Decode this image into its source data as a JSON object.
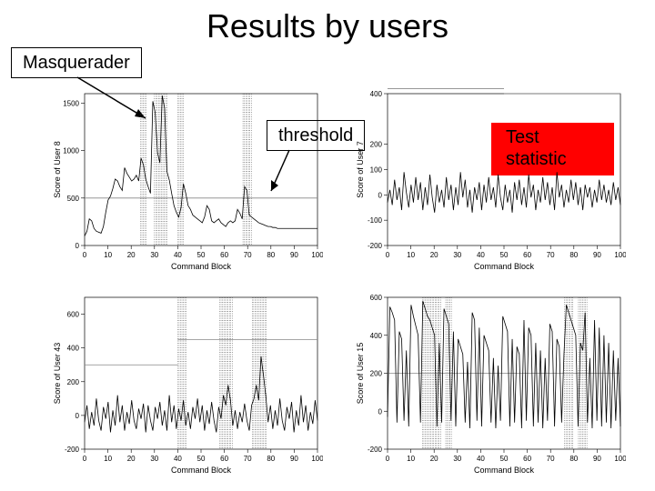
{
  "title": "Results by users",
  "labels": {
    "masquerader": "Masquerader",
    "threshold": "threshold",
    "test_statistic": "Test\nstatistic"
  },
  "x_axis_label": "Command Block",
  "panels": [
    {
      "ylabel": "Score of User 8",
      "xlim": [
        0,
        100
      ],
      "xticks": [
        0,
        10,
        20,
        30,
        40,
        50,
        60,
        70,
        80,
        90,
        100
      ],
      "ylim": [
        0,
        1600
      ],
      "yticks": [
        0,
        500,
        1000,
        1500
      ],
      "threshold_segments": [
        [
          0,
          100,
          500
        ]
      ],
      "masquerader_bands": [
        [
          24,
          27
        ],
        [
          30,
          36
        ],
        [
          40,
          43
        ],
        [
          68,
          72
        ]
      ],
      "series": [
        100,
        150,
        280,
        260,
        180,
        150,
        140,
        130,
        200,
        350,
        480,
        520,
        600,
        700,
        680,
        620,
        580,
        820,
        760,
        720,
        680,
        700,
        740,
        680,
        920,
        850,
        700,
        620,
        550,
        1520,
        1400,
        980,
        870,
        1580,
        1450,
        780,
        690,
        550,
        420,
        350,
        300,
        400,
        650,
        550,
        420,
        380,
        320,
        300,
        280,
        260,
        240,
        300,
        420,
        380,
        260,
        240,
        260,
        280,
        240,
        220,
        200,
        240,
        260,
        240,
        260,
        380,
        340,
        280,
        620,
        580,
        320,
        300,
        280,
        260,
        240,
        230,
        220,
        210,
        200,
        200,
        190,
        190,
        180,
        180,
        180,
        180,
        180,
        180,
        180,
        180,
        180,
        180,
        180,
        180,
        180,
        180,
        180,
        180,
        180,
        180
      ]
    },
    {
      "ylabel": "Score of User 7",
      "xlim": [
        0,
        100
      ],
      "xticks": [
        0,
        10,
        20,
        30,
        40,
        50,
        60,
        70,
        80,
        90,
        100
      ],
      "ylim": [
        -200,
        400
      ],
      "yticks": [
        -200,
        -100,
        0,
        100,
        200,
        400
      ],
      "threshold_segments": [
        [
          0,
          50,
          420
        ],
        [
          50,
          100,
          400
        ]
      ],
      "masquerader_bands": [],
      "series": [
        -30,
        20,
        -40,
        60,
        -20,
        30,
        -60,
        90,
        10,
        -50,
        40,
        -30,
        70,
        -20,
        50,
        -60,
        30,
        -40,
        80,
        -10,
        -70,
        40,
        -30,
        20,
        -50,
        70,
        -20,
        40,
        -60,
        30,
        -40,
        90,
        -10,
        60,
        -50,
        20,
        -70,
        30,
        -20,
        50,
        -60,
        40,
        -30,
        70,
        -20,
        30,
        -50,
        80,
        -10,
        -60,
        40,
        -30,
        20,
        -70,
        50,
        -20,
        60,
        -40,
        30,
        -50,
        80,
        -10,
        40,
        -60,
        20,
        -30,
        70,
        -20,
        50,
        -40,
        30,
        -60,
        90,
        -10,
        40,
        -50,
        20,
        -30,
        60,
        -20,
        50,
        -40,
        30,
        -60,
        40,
        -10,
        30,
        -50,
        20,
        -30,
        60,
        -20,
        40,
        -30,
        20,
        -40,
        50,
        -20,
        30,
        -40
      ]
    },
    {
      "ylabel": "Score of User 43",
      "xlim": [
        0,
        100
      ],
      "xticks": [
        0,
        10,
        20,
        30,
        40,
        50,
        60,
        70,
        80,
        90,
        100
      ],
      "ylim": [
        -200,
        700
      ],
      "yticks": [
        -200,
        0,
        200,
        400,
        600
      ],
      "threshold_segments": [
        [
          0,
          40,
          300
        ],
        [
          40,
          100,
          450
        ]
      ],
      "masquerader_bands": [
        [
          40,
          44
        ],
        [
          58,
          64
        ],
        [
          72,
          78
        ]
      ],
      "series": [
        -40,
        60,
        -80,
        20,
        -60,
        100,
        -30,
        -90,
        50,
        -20,
        80,
        -100,
        30,
        -60,
        120,
        -40,
        60,
        -90,
        20,
        -50,
        90,
        -30,
        -80,
        40,
        -20,
        70,
        -100,
        60,
        -30,
        -90,
        50,
        -20,
        80,
        -60,
        30,
        -90,
        120,
        -40,
        60,
        -80,
        40,
        -30,
        90,
        -60,
        20,
        -80,
        50,
        -20,
        100,
        -40,
        60,
        -90,
        30,
        -50,
        80,
        -30,
        -100,
        50,
        -20,
        120,
        60,
        180,
        90,
        -60,
        30,
        -80,
        20,
        -40,
        70,
        -30,
        -90,
        60,
        100,
        180,
        90,
        350,
        240,
        120,
        -40,
        60,
        -80,
        30,
        -60,
        100,
        -30,
        -90,
        50,
        -20,
        80,
        -100,
        30,
        -60,
        120,
        -40,
        60,
        -90,
        20,
        -50,
        90,
        -30
      ]
    },
    {
      "ylabel": "Score of User 15",
      "xlim": [
        0,
        100
      ],
      "xticks": [
        0,
        10,
        20,
        30,
        40,
        50,
        60,
        70,
        80,
        90,
        100
      ],
      "ylim": [
        -200,
        600
      ],
      "yticks": [
        -200,
        0,
        200,
        400,
        600
      ],
      "threshold_segments": [
        [
          0,
          100,
          200
        ]
      ],
      "masquerader_bands": [
        [
          15,
          23
        ],
        [
          25,
          28
        ],
        [
          76,
          80
        ],
        [
          82,
          86
        ]
      ],
      "series": [
        -30,
        550,
        520,
        480,
        -60,
        420,
        380,
        -50,
        320,
        -80,
        560,
        500,
        450,
        400,
        -60,
        580,
        540,
        500,
        480,
        440,
        400,
        -80,
        360,
        -60,
        540,
        500,
        460,
        -50,
        420,
        -80,
        380,
        340,
        300,
        -60,
        260,
        -90,
        520,
        480,
        -50,
        440,
        -80,
        400,
        360,
        320,
        -60,
        280,
        -90,
        240,
        -50,
        500,
        460,
        420,
        -80,
        380,
        -60,
        340,
        300,
        -90,
        480,
        -50,
        440,
        400,
        -80,
        360,
        -60,
        320,
        -90,
        280,
        -50,
        460,
        420,
        -80,
        380,
        340,
        -60,
        300,
        560,
        520,
        480,
        440,
        400,
        -80,
        360,
        320,
        520,
        -60,
        280,
        -90,
        480,
        -50,
        440,
        -80,
        400,
        -60,
        360,
        -90,
        320,
        -50,
        280,
        -80
      ]
    }
  ],
  "colors": {
    "bg": "#ffffff",
    "axis": "#000000",
    "series": "#000000",
    "threshold": "#888888",
    "masq": "#444444",
    "anno_bg": "#ff0000"
  }
}
